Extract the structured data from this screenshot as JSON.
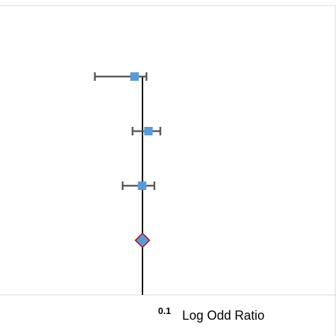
{
  "chart_data": {
    "type": "forest",
    "xlabel": "Log Odd Ratio",
    "x_ticks": [
      "0.1"
    ],
    "reference_line": 0.1,
    "studies": [
      {
        "estimate": 0.06,
        "lower": -0.14,
        "upper": 0.12
      },
      {
        "estimate": 0.13,
        "lower": 0.05,
        "upper": 0.19
      },
      {
        "estimate": 0.098,
        "lower": 0.0,
        "upper": 0.16
      }
    ],
    "pooled": {
      "estimate": 0.1
    },
    "colors": {
      "study_marker": "#5B9BD5",
      "whisker": "#595959",
      "pooled_fill": "#5B9BD5",
      "pooled_stroke": "#C00000",
      "reference_line": "#000000",
      "frame": "#D9D9D9"
    }
  }
}
